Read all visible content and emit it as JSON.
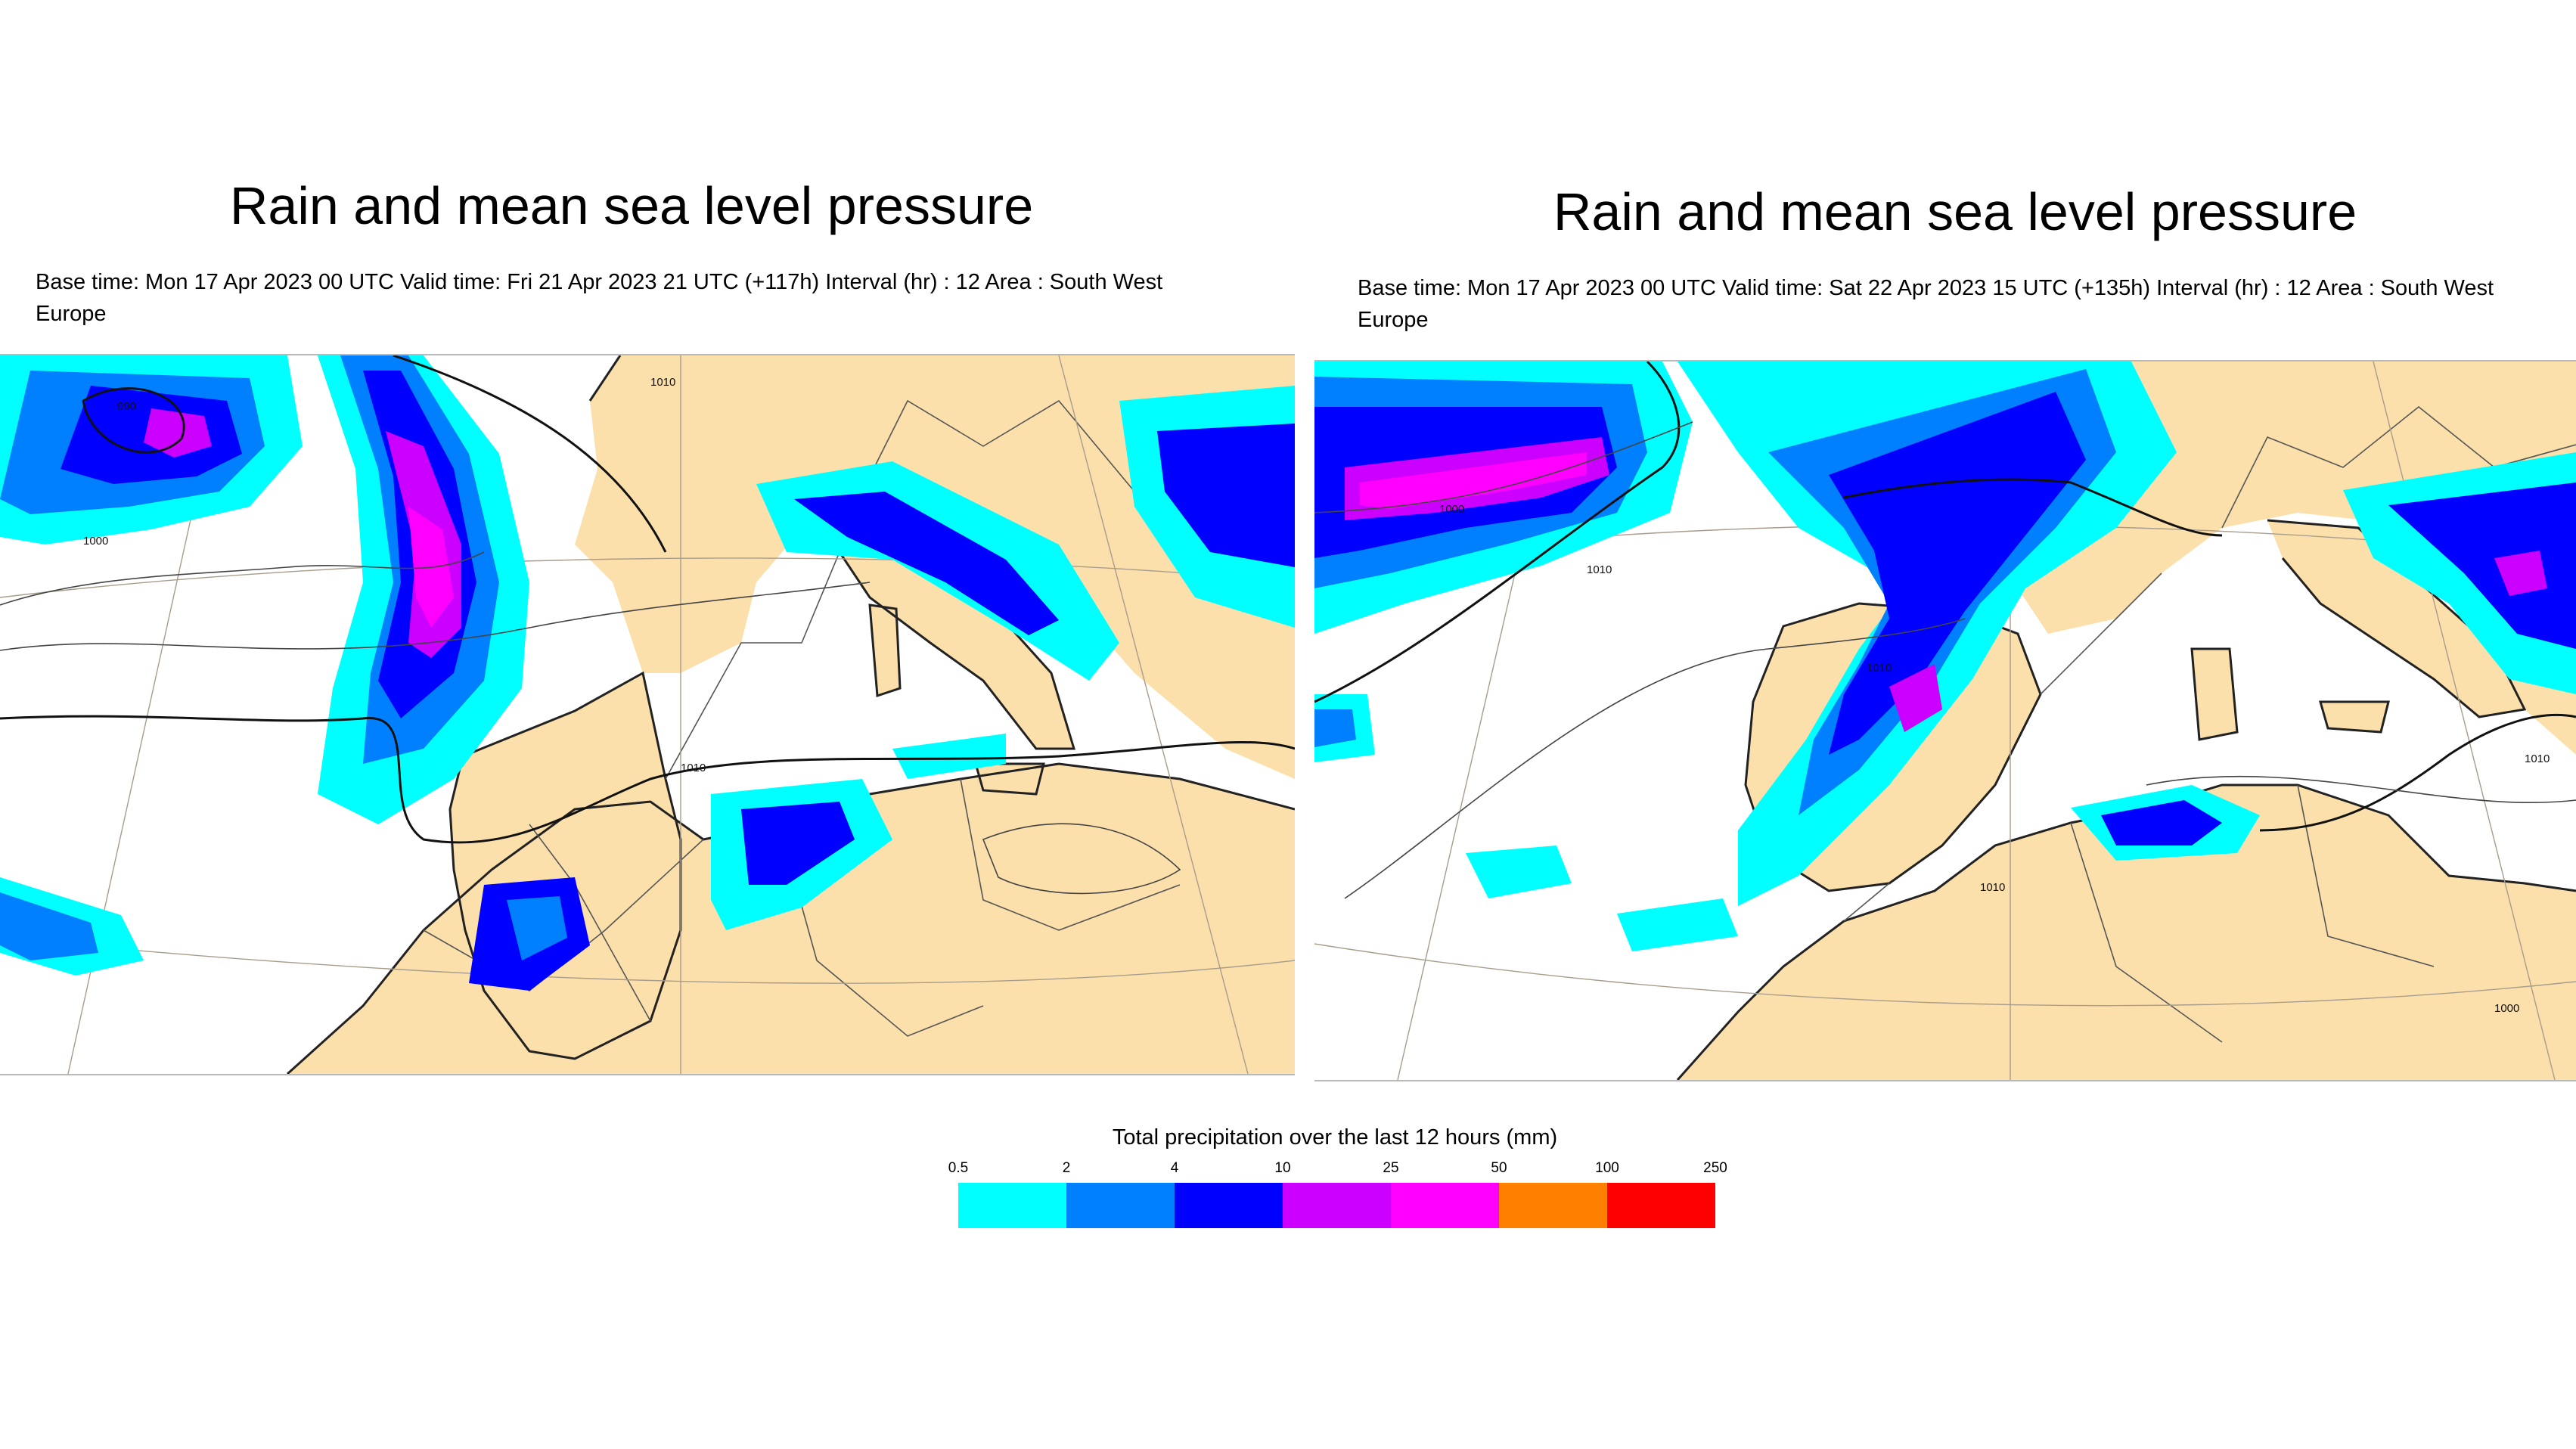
{
  "panels": [
    {
      "title": "Rain and mean sea level pressure",
      "subtitle": "Base time: Mon 17 Apr 2023 00 UTC Valid time: Fri 21 Apr 2023 21 UTC (+117h) Interval (hr) : 12 Area : South West Europe",
      "isobar_labels": [
        "990",
        "1000",
        "1010",
        "1010"
      ]
    },
    {
      "title": "Rain and mean sea level pressure",
      "subtitle": "Base time: Mon 17 Apr 2023 00 UTC Valid time: Sat 22 Apr 2023 15 UTC (+135h) Interval (hr) : 12 Area : South West Europe",
      "isobar_labels": [
        "1000",
        "1010",
        "1010",
        "1010",
        "1010",
        "1000"
      ]
    }
  ],
  "legend": {
    "title": "Total precipitation over the last 12 hours (mm)",
    "ticks": [
      "0.5",
      "2",
      "4",
      "10",
      "25",
      "50",
      "100",
      "250"
    ],
    "colors": [
      "#00ffff",
      "#0080ff",
      "#0000ff",
      "#cc00ff",
      "#ff00ff",
      "#ff8000",
      "#ff0000"
    ]
  },
  "map_colors": {
    "land": "#fce0ac",
    "sea": "#ffffff",
    "coast": "#222222",
    "border": "#555555",
    "graticule": "#a89c8c",
    "isobar": "#111111",
    "rain_levels": [
      "#00ffff",
      "#0080ff",
      "#0000ff",
      "#cc00ff",
      "#ff00ff"
    ]
  }
}
